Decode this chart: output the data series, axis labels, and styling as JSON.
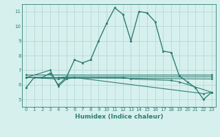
{
  "background_color": "#d6f0ee",
  "grid_color": "#b8d8d4",
  "line_color": "#2e7d72",
  "xlabel": "Humidex (Indice chaleur)",
  "xlim": [
    -0.5,
    23.5
  ],
  "ylim": [
    4.5,
    11.5
  ],
  "xticks": [
    0,
    1,
    2,
    3,
    4,
    5,
    6,
    7,
    8,
    9,
    10,
    11,
    12,
    13,
    14,
    15,
    16,
    17,
    18,
    19,
    20,
    21,
    22,
    23
  ],
  "yticks": [
    5,
    6,
    7,
    8,
    9,
    10,
    11
  ],
  "series": [
    {
      "x": [
        0,
        1,
        2,
        3,
        4,
        5,
        6,
        7,
        8,
        9,
        10,
        11,
        12,
        13,
        14,
        15,
        16,
        17,
        18,
        19,
        20,
        21,
        22,
        23
      ],
      "y": [
        5.8,
        6.5,
        6.5,
        6.8,
        6.0,
        6.5,
        7.7,
        7.5,
        7.7,
        9.0,
        10.2,
        11.25,
        10.8,
        9.0,
        11.0,
        10.9,
        10.3,
        8.3,
        8.2,
        6.6,
        6.2,
        5.8,
        5.0,
        5.5
      ],
      "has_markers": true,
      "lw": 1.0
    },
    {
      "x": [
        0,
        23
      ],
      "y": [
        6.7,
        6.7
      ],
      "has_markers": false,
      "lw": 0.8
    },
    {
      "x": [
        0,
        23
      ],
      "y": [
        6.5,
        6.4
      ],
      "has_markers": false,
      "lw": 0.8
    },
    {
      "x": [
        0,
        4,
        5,
        23
      ],
      "y": [
        6.5,
        6.5,
        6.55,
        6.55
      ],
      "has_markers": false,
      "lw": 0.8
    },
    {
      "x": [
        0,
        4,
        5,
        12,
        13,
        18,
        19,
        23
      ],
      "y": [
        6.5,
        6.4,
        6.45,
        6.5,
        6.4,
        6.3,
        6.2,
        5.5
      ],
      "has_markers": false,
      "lw": 0.8
    },
    {
      "x": [
        0,
        3,
        4,
        5,
        6,
        22,
        23
      ],
      "y": [
        6.5,
        7.0,
        5.9,
        6.4,
        6.5,
        5.4,
        5.5
      ],
      "has_markers": false,
      "lw": 0.8
    }
  ]
}
